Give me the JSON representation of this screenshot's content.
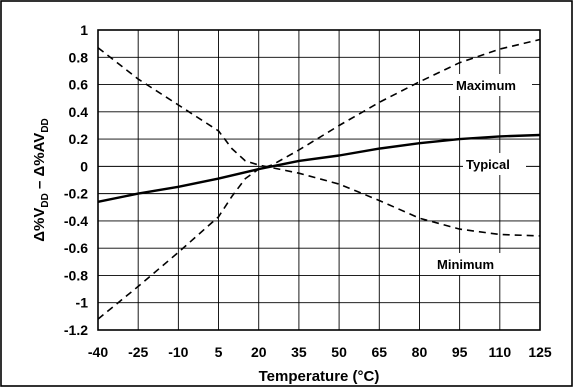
{
  "chart_data": {
    "type": "line",
    "xlabel": "Temperature (°C)",
    "ylabel_parts": [
      "Δ%V",
      "DD",
      " – Δ%AV",
      "DD"
    ],
    "x_ticks": [
      -40,
      -25,
      -10,
      5,
      20,
      35,
      50,
      65,
      80,
      95,
      110,
      125
    ],
    "y_ticks": [
      1,
      0.8,
      0.6,
      0.4,
      0.2,
      0,
      -0.2,
      -0.4,
      -0.6,
      -0.8,
      -1,
      -1.2
    ],
    "xlim": [
      -40,
      125
    ],
    "ylim": [
      -1.2,
      1
    ],
    "grid": true,
    "series": [
      {
        "name": "Maximum",
        "style": "dashed",
        "x": [
          -40,
          -25,
          -10,
          5,
          10,
          15,
          20,
          25,
          35,
          50,
          65,
          80,
          95,
          110,
          125
        ],
        "y": [
          -1.12,
          -0.88,
          -0.63,
          -0.37,
          -0.22,
          -0.09,
          -0.02,
          0.01,
          0.12,
          0.3,
          0.47,
          0.62,
          0.76,
          0.86,
          0.93
        ]
      },
      {
        "name": "Typical",
        "style": "solid",
        "x": [
          -40,
          -25,
          -10,
          5,
          20,
          35,
          50,
          65,
          80,
          95,
          110,
          125
        ],
        "y": [
          -0.26,
          -0.2,
          -0.15,
          -0.09,
          -0.02,
          0.04,
          0.08,
          0.13,
          0.17,
          0.2,
          0.22,
          0.23
        ]
      },
      {
        "name": "Minimum",
        "style": "dashed",
        "x": [
          -40,
          -25,
          -10,
          5,
          10,
          15,
          20,
          25,
          35,
          50,
          65,
          80,
          95,
          110,
          125
        ],
        "y": [
          0.87,
          0.64,
          0.45,
          0.26,
          0.13,
          0.04,
          0.01,
          -0.01,
          -0.05,
          -0.13,
          -0.25,
          -0.38,
          -0.46,
          -0.5,
          -0.51
        ]
      }
    ],
    "annotations": [
      "Maximum",
      "Typical",
      "Minimum"
    ]
  }
}
